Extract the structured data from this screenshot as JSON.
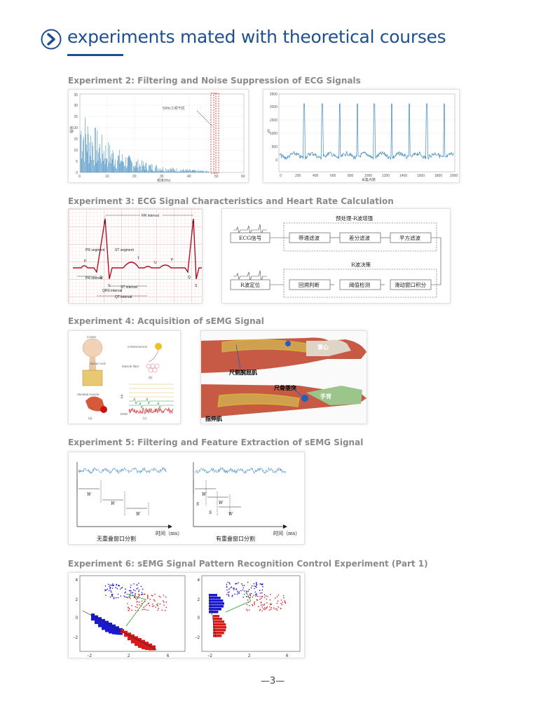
{
  "header": {
    "title": "experiments mated with theoretical courses"
  },
  "experiments": [
    {
      "title": "Experiment 2: Filtering and Noise Suppression of ECG Signals"
    },
    {
      "title": "Experiment 3: ECG Signal Characteristics and Heart Rate Calculation"
    },
    {
      "title": "Experiment 4: Acquisition of sEMG Signal"
    },
    {
      "title": "Experiment 5: Filtering and Feature Extraction of sEMG Signal"
    },
    {
      "title": "Experiment 6: sEMG Signal Pattern Recognition Control Experiment (Part 1)"
    }
  ],
  "fig_spectrum": {
    "annotation": "50Hz工频干扰",
    "xlabel": "频率(Hz)",
    "ylabel": "幅值",
    "x_ticks": [
      "0",
      "10",
      "20",
      "30",
      "40",
      "50",
      "60"
    ],
    "y_ticks": [
      "0",
      "5",
      "10",
      "15",
      "20",
      "25",
      "30",
      "35"
    ]
  },
  "fig_ecg_time": {
    "xlabel": "采集点数",
    "ylabel": "μV",
    "x_ticks": [
      "0",
      "200",
      "400",
      "600",
      "800",
      "1000",
      "1200",
      "1400",
      "1600",
      "1800",
      "2000"
    ],
    "y_ticks": [
      "0",
      "500",
      "1000",
      "1500",
      "2000",
      "2500"
    ]
  },
  "fig_ecg_wave": {
    "labels": {
      "rr": "RR interval",
      "r1": "R",
      "r2": "R",
      "pr_segment": "PR\nsegment",
      "st_segment": "ST\nsegment",
      "p1": "P",
      "t": "T",
      "u": "U",
      "p2": "P",
      "q1": "Q",
      "q2": "Q",
      "s1": "S",
      "s2": "S",
      "pr_interval": "PR\ninterval",
      "qrs_interval": "QRS\ninterval",
      "st_interval": "ST interval",
      "qt_interval": "QT interval"
    }
  },
  "fig_flow": {
    "pre_title": "预处理-R波增强",
    "ecg_label": "ECG信号",
    "bandpass": "带通滤波",
    "diff": "差分滤波",
    "square": "平方滤波",
    "decision_title": "R波决策",
    "locate": "R波定位",
    "backtrack": "回溯判断",
    "threshold": "阈值检测",
    "window": "滑动窗口积分"
  },
  "fig_semg_diagram": {
    "labels": {
      "cortex": "Cortex",
      "motoneuron": "α-Motoneuron",
      "spinal_cord": "Spinal\ncord",
      "muscle_fiber": "Muscle\nfiber",
      "skeletal": "Skeletal\nmuscle",
      "b": "(b)",
      "a": "(a)",
      "c": "(c)",
      "sigma": "Σ",
      "emg": "EMG"
    }
  },
  "fig_arm": {
    "labels": {
      "palm": "掌心",
      "flexor": "尺侧腕屈肌",
      "ulna": "尺骨茎突",
      "back": "手背",
      "extensor": "指伸肌"
    }
  },
  "fig_window_a": {
    "caption": "无重叠窗口分割",
    "time_label": "时间（ms）",
    "w": "W"
  },
  "fig_window_b": {
    "caption": "有重叠窗口分割",
    "time_label": "时间（ms）",
    "w": "W",
    "s": "S"
  },
  "fig_lda": {
    "y_ticks": [
      "4",
      "2",
      "0",
      "−2"
    ],
    "x_ticks": [
      "−2",
      "2",
      "6"
    ]
  },
  "colors": {
    "accent": "#1e4f8f",
    "signal": "#1f77b4",
    "dash_red": "#e02020",
    "class_blue": "#1a1acc",
    "class_red": "#d91a1a"
  },
  "page": {
    "number": "—3—"
  }
}
